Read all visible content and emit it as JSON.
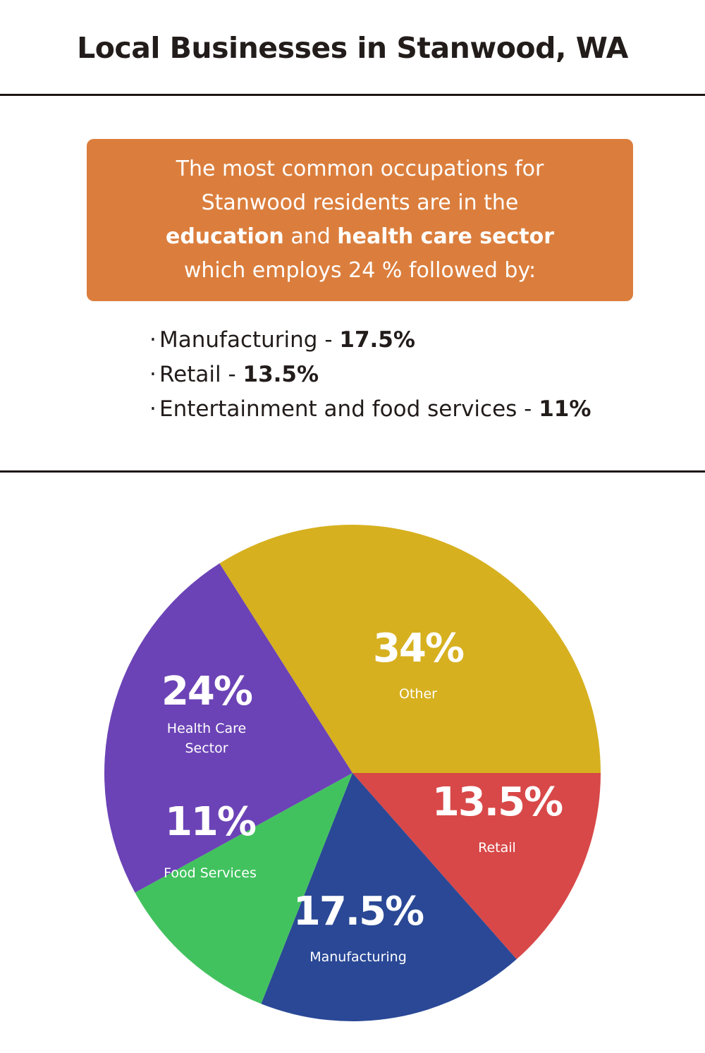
{
  "title": "Local Businesses in Stanwood, WA",
  "callout": {
    "line1": "The most common occupations for",
    "line2": "Stanwood residents are in the",
    "line3_bold_a": "education",
    "line3_mid": " and ",
    "line3_bold_b": "health care sector",
    "line4": "which employs 24 % followed by:"
  },
  "bullets": [
    {
      "label": "Manufacturing - ",
      "value": "17.5%"
    },
    {
      "label": "Retail - ",
      "value": "13.5%"
    },
    {
      "label": "Entertainment and food services - ",
      "value": "11%"
    }
  ],
  "colors": {
    "callout": "#db7e3d",
    "other": "#d6b01f",
    "retail": "#d84848",
    "manufacturing": "#2a4896",
    "food": "#42c25e",
    "health": "#6b43b6"
  },
  "chart_data": {
    "type": "pie",
    "slices": [
      {
        "label": "Other",
        "value_label": "34%",
        "value": 34,
        "color": "#d6b01f"
      },
      {
        "label": "Retail",
        "value_label": "13.5%",
        "value": 13.5,
        "color": "#d84848"
      },
      {
        "label": "Manufacturing",
        "value_label": "17.5%",
        "value": 17.5,
        "color": "#2a4896"
      },
      {
        "label": "Food Services",
        "value_label": "11%",
        "value": 11,
        "color": "#42c25e"
      },
      {
        "label": "Health Care Sector",
        "label_lines": [
          "Health Care",
          "Sector"
        ],
        "value_label": "24%",
        "value": 24,
        "color": "#6b43b6"
      }
    ]
  }
}
